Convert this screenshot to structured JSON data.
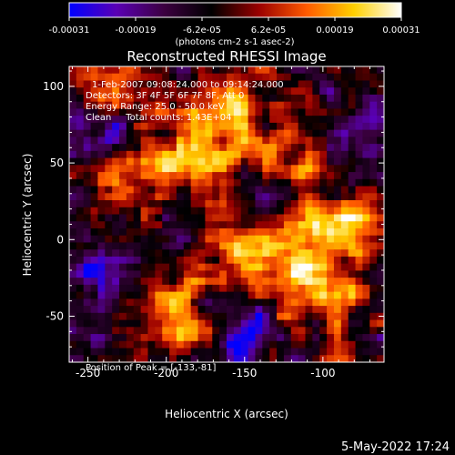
{
  "chart_data": {
    "type": "heatmap",
    "title": "Reconstructed RHESSI Image",
    "xlabel": "Heliocentric X (arcsec)",
    "ylabel": "Heliocentric Y (arcsec)",
    "xlim": [
      -262,
      -61
    ],
    "ylim": [
      -80,
      113
    ],
    "x_ticks": [
      -250,
      -200,
      -150,
      -100
    ],
    "y_ticks": [
      -50,
      0,
      50,
      100
    ],
    "colorbar": {
      "ticks": [
        "-0.00031",
        "-0.00019",
        "-6.2e-05",
        "6.2e-05",
        "0.00019",
        "0.00031"
      ],
      "range": [
        -0.00031,
        0.00031
      ],
      "unit_label": "(photons cm-2 s-1 asec-2)",
      "colormap": [
        "#0000ff",
        "#5a00b4",
        "#3c0040",
        "#000000",
        "#9a0000",
        "#ff5a00",
        "#ffd000",
        "#ffffff"
      ]
    },
    "annotations": [
      "1-Feb-2007 09:08:24.000 to 09:14:24.000",
      "Detectors: 3F 4F 5F 6F 7F 8F, Att 0",
      "Energy Range: 25.0 - 50.0 keV",
      "Clean     Total counts: 1.43E+04",
      "Position of Peak = [-133,-81]"
    ],
    "hotspots": [
      {
        "x": -180,
        "y": 55,
        "amp": 1.0
      },
      {
        "x": -220,
        "y": 40,
        "amp": 0.9
      },
      {
        "x": -160,
        "y": 90,
        "amp": 0.8
      },
      {
        "x": -235,
        "y": 95,
        "amp": 0.7
      },
      {
        "x": -85,
        "y": 10,
        "amp": 1.0
      },
      {
        "x": -120,
        "y": 0,
        "amp": 0.8
      },
      {
        "x": -150,
        "y": -15,
        "amp": 0.7
      },
      {
        "x": -190,
        "y": -50,
        "amp": 0.85
      },
      {
        "x": -100,
        "y": -40,
        "amp": 0.75
      },
      {
        "x": -120,
        "y": 55,
        "amp": 0.6
      },
      {
        "x": -230,
        "y": -10,
        "amp": 0.5
      }
    ],
    "coldspots": [
      {
        "x": -240,
        "y": 70,
        "amp": 0.8
      },
      {
        "x": -240,
        "y": -20,
        "amp": 0.9
      },
      {
        "x": -150,
        "y": -60,
        "amp": 0.8
      },
      {
        "x": -80,
        "y": 70,
        "amp": 0.6
      },
      {
        "x": -200,
        "y": 15,
        "amp": 0.5
      },
      {
        "x": -130,
        "y": 30,
        "amp": 0.5
      }
    ]
  },
  "timestamp": "5-May-2022 17:24"
}
